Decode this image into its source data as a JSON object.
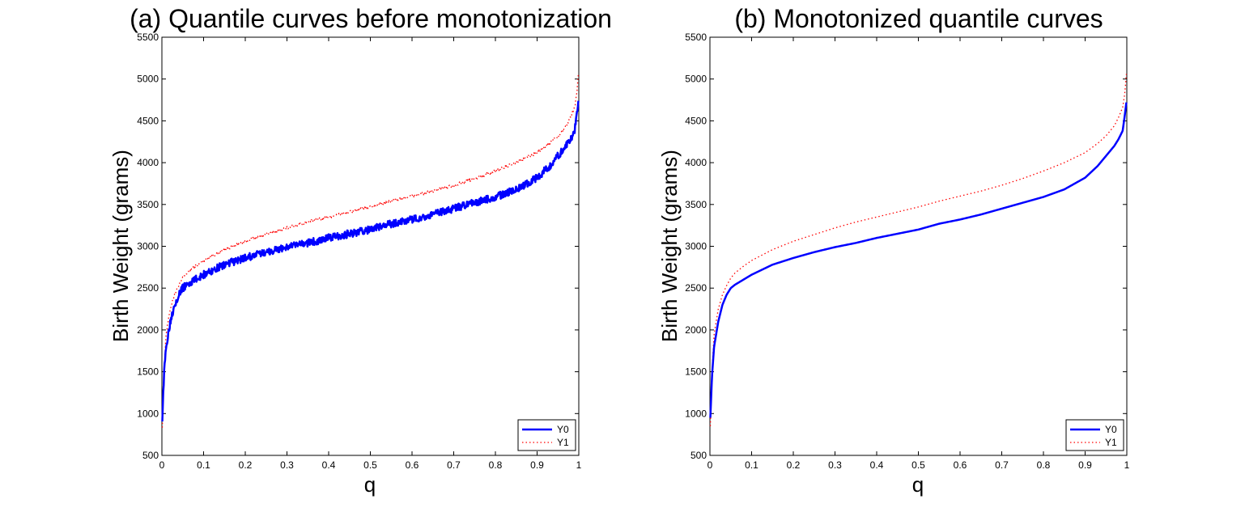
{
  "figure": {
    "background": "#ffffff"
  },
  "chart_data": [
    {
      "id": "a",
      "type": "line",
      "title": "(a) Quantile curves before monotonization",
      "xlabel": "q",
      "ylabel": "Birth Weight (grams)",
      "xlim": [
        0,
        1
      ],
      "ylim": [
        500,
        5500
      ],
      "xticks": [
        0,
        0.1,
        0.2,
        0.3,
        0.4,
        0.5,
        0.6,
        0.7,
        0.8,
        0.9,
        1
      ],
      "xtick_labels": [
        "0",
        "0.1",
        "0.2",
        "0.3",
        "0.4",
        "0.5",
        "0.6",
        "0.7",
        "0.8",
        "0.9",
        "1"
      ],
      "yticks": [
        500,
        1000,
        1500,
        2000,
        2500,
        3000,
        3500,
        4000,
        4500,
        5000,
        5500
      ],
      "ytick_labels": [
        "500",
        "1000",
        "1500",
        "2000",
        "2500",
        "3000",
        "3500",
        "4000",
        "4500",
        "5000",
        "5500"
      ],
      "grid": false,
      "legend": {
        "position": "bottom-right",
        "entries": [
          "Y0",
          "Y1"
        ]
      },
      "noise": {
        "Y0": 45,
        "Y1": 18
      },
      "series": [
        {
          "name": "Y0",
          "color": "#0000ff",
          "style": "solid",
          "x": [
            0.001,
            0.005,
            0.01,
            0.02,
            0.03,
            0.04,
            0.05,
            0.06,
            0.08,
            0.1,
            0.15,
            0.2,
            0.25,
            0.3,
            0.35,
            0.4,
            0.45,
            0.5,
            0.55,
            0.6,
            0.65,
            0.7,
            0.75,
            0.8,
            0.85,
            0.9,
            0.93,
            0.95,
            0.97,
            0.98,
            0.99,
            0.995,
            0.999
          ],
          "y": [
            950,
            1450,
            1800,
            2100,
            2300,
            2420,
            2500,
            2540,
            2600,
            2660,
            2780,
            2860,
            2930,
            2990,
            3040,
            3100,
            3150,
            3200,
            3270,
            3320,
            3380,
            3450,
            3520,
            3590,
            3680,
            3820,
            3960,
            4080,
            4200,
            4280,
            4380,
            4560,
            4720
          ]
        },
        {
          "name": "Y1",
          "color": "#ff0000",
          "style": "dotted",
          "x": [
            0.001,
            0.005,
            0.01,
            0.02,
            0.03,
            0.04,
            0.05,
            0.06,
            0.08,
            0.1,
            0.15,
            0.2,
            0.25,
            0.3,
            0.35,
            0.4,
            0.45,
            0.5,
            0.55,
            0.6,
            0.65,
            0.7,
            0.75,
            0.8,
            0.85,
            0.9,
            0.93,
            0.95,
            0.97,
            0.98,
            0.99,
            0.995,
            0.999
          ],
          "y": [
            850,
            1500,
            1950,
            2250,
            2420,
            2530,
            2620,
            2680,
            2760,
            2830,
            2960,
            3060,
            3140,
            3220,
            3290,
            3350,
            3410,
            3470,
            3540,
            3600,
            3660,
            3730,
            3810,
            3900,
            4000,
            4120,
            4230,
            4320,
            4440,
            4540,
            4660,
            4820,
            5060
          ]
        }
      ]
    },
    {
      "id": "b",
      "type": "line",
      "title": "(b) Monotonized quantile curves",
      "xlabel": "q",
      "ylabel": "Birth Weight (grams)",
      "xlim": [
        0,
        1
      ],
      "ylim": [
        500,
        5500
      ],
      "xticks": [
        0,
        0.1,
        0.2,
        0.3,
        0.4,
        0.5,
        0.6,
        0.7,
        0.8,
        0.9,
        1
      ],
      "xtick_labels": [
        "0",
        "0.1",
        "0.2",
        "0.3",
        "0.4",
        "0.5",
        "0.6",
        "0.7",
        "0.8",
        "0.9",
        "1"
      ],
      "yticks": [
        500,
        1000,
        1500,
        2000,
        2500,
        3000,
        3500,
        4000,
        4500,
        5000,
        5500
      ],
      "ytick_labels": [
        "500",
        "1000",
        "1500",
        "2000",
        "2500",
        "3000",
        "3500",
        "4000",
        "4500",
        "5000",
        "5500"
      ],
      "grid": false,
      "legend": {
        "position": "bottom-right",
        "entries": [
          "Y0",
          "Y1"
        ]
      },
      "noise": {
        "Y0": 0,
        "Y1": 0
      },
      "series": [
        {
          "name": "Y0",
          "color": "#0000ff",
          "style": "solid",
          "x": [
            0.001,
            0.005,
            0.01,
            0.02,
            0.03,
            0.04,
            0.05,
            0.06,
            0.08,
            0.1,
            0.15,
            0.2,
            0.25,
            0.3,
            0.35,
            0.4,
            0.45,
            0.5,
            0.55,
            0.6,
            0.65,
            0.7,
            0.75,
            0.8,
            0.85,
            0.9,
            0.93,
            0.95,
            0.97,
            0.98,
            0.99,
            0.995,
            0.999
          ],
          "y": [
            950,
            1450,
            1800,
            2100,
            2300,
            2420,
            2500,
            2540,
            2600,
            2660,
            2780,
            2860,
            2930,
            2990,
            3040,
            3100,
            3150,
            3200,
            3270,
            3320,
            3380,
            3450,
            3520,
            3590,
            3680,
            3820,
            3960,
            4080,
            4200,
            4280,
            4380,
            4560,
            4720
          ]
        },
        {
          "name": "Y1",
          "color": "#ff0000",
          "style": "dotted",
          "x": [
            0.001,
            0.005,
            0.01,
            0.02,
            0.03,
            0.04,
            0.05,
            0.06,
            0.08,
            0.1,
            0.15,
            0.2,
            0.25,
            0.3,
            0.35,
            0.4,
            0.45,
            0.5,
            0.55,
            0.6,
            0.65,
            0.7,
            0.75,
            0.8,
            0.85,
            0.9,
            0.93,
            0.95,
            0.97,
            0.98,
            0.99,
            0.995,
            0.999
          ],
          "y": [
            850,
            1500,
            1950,
            2250,
            2420,
            2530,
            2620,
            2680,
            2760,
            2830,
            2960,
            3060,
            3140,
            3220,
            3290,
            3350,
            3410,
            3470,
            3540,
            3600,
            3660,
            3730,
            3810,
            3900,
            4000,
            4120,
            4230,
            4320,
            4440,
            4540,
            4660,
            4820,
            5060
          ]
        }
      ]
    }
  ]
}
